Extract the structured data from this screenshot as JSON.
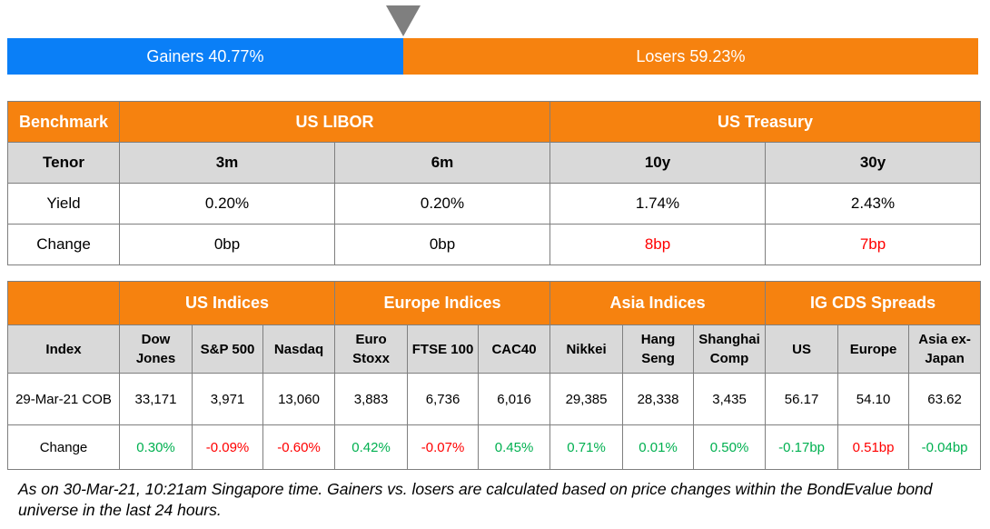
{
  "bar": {
    "gainers_label": "Gainers 40.77%",
    "losers_label": "Losers 59.23%",
    "gainers_pct": 40.77,
    "losers_pct": 59.23,
    "gainers_color": "#0a7ff7",
    "losers_color": "#f6820f"
  },
  "rates": {
    "benchmark_label": "Benchmark",
    "libor_label": "US LIBOR",
    "treasury_label": "US Treasury",
    "tenor_label": "Tenor",
    "tenors": [
      "3m",
      "6m",
      "10y",
      "30y"
    ],
    "yield_label": "Yield",
    "yields": [
      "0.20%",
      "0.20%",
      "1.74%",
      "2.43%"
    ],
    "change_label": "Change",
    "changes": [
      "0bp",
      "0bp",
      "8bp",
      "7bp"
    ]
  },
  "indices": {
    "groups": [
      "US Indices",
      "Europe Indices",
      "Asia Indices",
      "IG CDS Spreads"
    ],
    "index_label": "Index",
    "names": [
      "Dow Jones",
      "S&P 500",
      "Nasdaq",
      "Euro Stoxx",
      "FTSE 100",
      "CAC40",
      "Nikkei",
      "Hang Seng",
      "Shanghai Comp",
      "US",
      "Europe",
      "Asia ex-Japan"
    ],
    "date_label": "29-Mar-21 COB",
    "values": [
      "33,171",
      "3,971",
      "13,060",
      "3,883",
      "6,736",
      "6,016",
      "29,385",
      "28,338",
      "3,435",
      "56.17",
      "54.10",
      "63.62"
    ],
    "change_label": "Change",
    "changes": [
      "0.30%",
      "-0.09%",
      "-0.60%",
      "0.42%",
      "-0.07%",
      "0.45%",
      "0.71%",
      "0.01%",
      "0.50%",
      "-0.17bp",
      "0.51bp",
      "-0.04bp"
    ]
  },
  "footnote": "As on 30-Mar-21, 10:21am Singapore time. Gainers vs. losers are calculated based on price changes within the BondEvalue bond universe in the last 24 hours."
}
